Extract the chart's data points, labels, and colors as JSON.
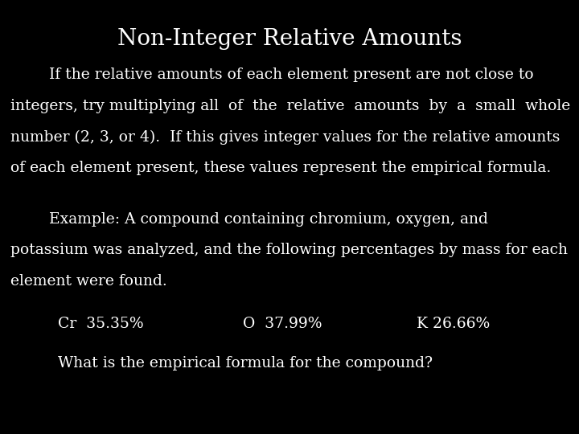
{
  "title": "Non-Integer Relative Amounts",
  "title_fontsize": 20,
  "title_color": "#ffffff",
  "background_color": "#000000",
  "text_color": "#ffffff",
  "body_fontsize": 13.5,
  "paragraph1_line1": "        If the relative amounts of each element present are not close to",
  "paragraph1_line2": "integers, try multiplying all  of  the  relative  amounts  by  a  small  whole",
  "paragraph1_line3": "number (2, 3, or 4).  If this gives integer values for the relative amounts",
  "paragraph1_line4": "of each element present, these values represent the empirical formula.",
  "paragraph2_line1": "        Example: A compound containing chromium, oxygen, and",
  "paragraph2_line2": "potassium was analyzed, and the following percentages by mass for each",
  "paragraph2_line3": "element were found.",
  "cr_label": "Cr  35.35%",
  "o_label": "O  37.99%",
  "k_label": "K 26.66%",
  "question_line": "What is the empirical formula for the compound?",
  "font_family": "serif"
}
